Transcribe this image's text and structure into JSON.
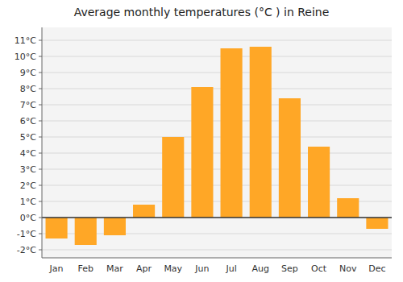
{
  "chart_data": {
    "type": "bar",
    "title": "Average monthly temperatures (°C ) in Reine",
    "categories": [
      "Jan",
      "Feb",
      "Mar",
      "Apr",
      "May",
      "Jun",
      "Jul",
      "Aug",
      "Sep",
      "Oct",
      "Nov",
      "Dec"
    ],
    "values": [
      -1.3,
      -1.7,
      -1.1,
      0.8,
      5.0,
      8.1,
      10.5,
      10.6,
      7.4,
      4.4,
      1.2,
      -0.7
    ],
    "color": "#FFA726",
    "ylim": [
      -2.5,
      11.8
    ],
    "yticks": [
      {
        "value": -2,
        "label": "-2°C"
      },
      {
        "value": -1,
        "label": "-1°C"
      },
      {
        "value": 0,
        "label": "0°C"
      },
      {
        "value": 1,
        "label": "1°C"
      },
      {
        "value": 2,
        "label": "2°C"
      },
      {
        "value": 3,
        "label": "3°C"
      },
      {
        "value": 4,
        "label": "4°C"
      },
      {
        "value": 5,
        "label": "5°C"
      },
      {
        "value": 6,
        "label": "6°C"
      },
      {
        "value": 7,
        "label": "7°C"
      },
      {
        "value": 8,
        "label": "8°C"
      },
      {
        "value": 9,
        "label": "9°C"
      },
      {
        "value": 10,
        "label": "10°C"
      },
      {
        "value": 11,
        "label": "11°C"
      }
    ],
    "grid": true
  }
}
